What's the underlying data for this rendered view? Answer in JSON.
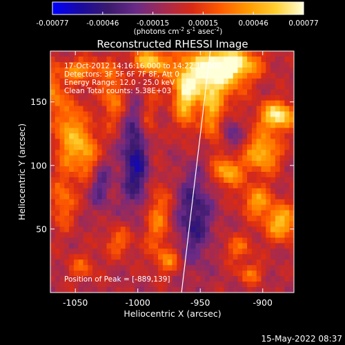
{
  "chart_data": {
    "type": "heatmap",
    "title": "Reconstructed RHESSI Image",
    "xlabel": "Heliocentric X (arcsec)",
    "ylabel": "Heliocentric Y (arcsec)",
    "xlim": [
      -1070,
      -875
    ],
    "ylim": [
      0,
      190
    ],
    "x_ticks": [
      -1050,
      -1000,
      -950,
      -900
    ],
    "y_ticks": [
      50,
      100,
      150
    ],
    "colorbar": {
      "range": [
        -0.00077,
        0.00077
      ],
      "ticks": [
        "-0.00077",
        "-0.00046",
        "-0.00015",
        "0.00015",
        "0.00046",
        "0.00077"
      ],
      "label_parts": [
        "(photons cm",
        "-2",
        " s",
        "-1",
        " asec",
        "-2",
        ")"
      ],
      "stops": [
        "#0000ff",
        "#1a0aa0",
        "#3a1a6e",
        "#6a2a86",
        "#a52a50",
        "#d82a16",
        "#ff5a00",
        "#ff9a00",
        "#ffcf30",
        "#ffffd8"
      ]
    },
    "annotations": [
      "17-Oct-2012 14:16:16.000 to 14:22:16.000",
      "Detectors: 3F 5F 6F 7F 8F, Att 0",
      "Energy Range: 12.0 - 25.0 keV",
      "Clean     Total counts: 5.38E+03"
    ],
    "peak": {
      "label": "Position of Peak = [-889,139]",
      "x": -889,
      "y": 139
    },
    "limb_line": [
      [
        -965,
        0
      ],
      [
        -942,
        190
      ]
    ],
    "map_grid": [
      52,
      44
    ],
    "blobs": [
      [
        -946,
        168,
        26,
        22,
        0.95
      ],
      [
        -925,
        180,
        22,
        12,
        0.9
      ],
      [
        -990,
        182,
        14,
        10,
        0.8
      ],
      [
        -1045,
        175,
        18,
        9,
        0.55
      ],
      [
        -888,
        139,
        14,
        11,
        1.0
      ],
      [
        -900,
        110,
        14,
        16,
        0.75
      ],
      [
        -928,
        95,
        12,
        12,
        0.7
      ],
      [
        -905,
        72,
        12,
        12,
        0.6
      ],
      [
        -885,
        55,
        14,
        14,
        0.75
      ],
      [
        -1055,
        125,
        12,
        30,
        0.65
      ],
      [
        -1040,
        110,
        10,
        20,
        0.55
      ],
      [
        -1060,
        70,
        10,
        20,
        0.45
      ],
      [
        -1020,
        155,
        10,
        25,
        0.5
      ],
      [
        -992,
        130,
        8,
        30,
        0.45
      ],
      [
        -985,
        60,
        12,
        30,
        0.5
      ],
      [
        -962,
        150,
        8,
        25,
        0.55
      ],
      [
        -940,
        135,
        8,
        20,
        0.5
      ],
      [
        -1015,
        40,
        12,
        12,
        0.4
      ],
      [
        -975,
        25,
        10,
        10,
        0.45
      ],
      [
        -920,
        35,
        12,
        10,
        0.4
      ],
      [
        -1045,
        20,
        12,
        10,
        0.35
      ],
      [
        -910,
        15,
        10,
        8,
        0.45
      ],
      [
        -1068,
        160,
        6,
        15,
        0.5
      ]
    ],
    "dips": [
      [
        -1000,
        105,
        12,
        40,
        -0.75
      ],
      [
        -955,
        60,
        14,
        35,
        -0.55
      ],
      [
        -1030,
        85,
        8,
        20,
        -0.4
      ],
      [
        -925,
        125,
        8,
        12,
        -0.35
      ]
    ]
  },
  "footer": {
    "datetime": "15-May-2022 08:37"
  }
}
